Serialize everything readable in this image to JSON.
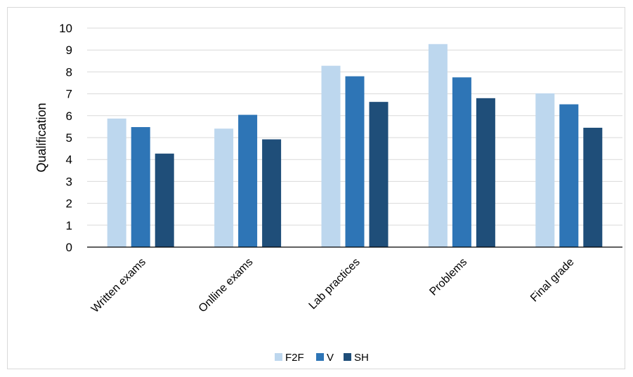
{
  "chart_data": {
    "type": "bar",
    "title": "",
    "xlabel": "",
    "ylabel": "Qualification",
    "ylim": [
      0,
      10
    ],
    "yticks": [
      0,
      1,
      2,
      3,
      4,
      5,
      6,
      7,
      8,
      9,
      10
    ],
    "grid": true,
    "legend_position": "bottom",
    "categories": [
      "Written exams",
      "Onlline exams",
      "Lab practices",
      "Problems",
      "Final grade"
    ],
    "series": [
      {
        "name": "F2F",
        "color": "#bdd7ee",
        "values": [
          5.87,
          5.41,
          8.28,
          9.27,
          7.02
        ]
      },
      {
        "name": "V",
        "color": "#2e75b6",
        "values": [
          5.48,
          6.04,
          7.8,
          7.75,
          6.52
        ]
      },
      {
        "name": "SH",
        "color": "#1f4e79",
        "values": [
          4.27,
          4.92,
          6.63,
          6.8,
          5.45
        ]
      }
    ]
  }
}
